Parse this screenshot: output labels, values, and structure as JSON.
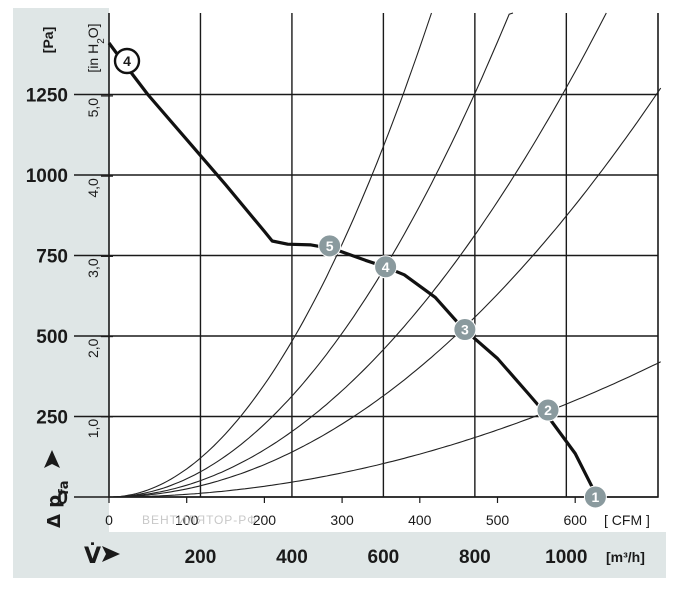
{
  "chart_data": {
    "type": "line",
    "title": "",
    "colors": {
      "panel_bg": "#dfe6e6",
      "plot_bg": "#ffffff",
      "grid": "#1a1a1a",
      "curve": "#111111",
      "point_fill": "#8a9a9e"
    },
    "y_left": {
      "label": "[Pa]",
      "range": [
        0,
        1400
      ],
      "ticks": [
        "0",
        "250",
        "500",
        "750",
        "1000",
        "1250"
      ]
    },
    "y_right": {
      "label": "[in H2O]",
      "label_parts": {
        "a": "[in H",
        "sub": "2",
        "b": "O]"
      },
      "ticks": [
        "1,0",
        "2,0",
        "3,0",
        "4,0",
        "5,0"
      ]
    },
    "x_cfm": {
      "label": "[ CFM ]",
      "range": [
        0,
        710
      ],
      "ticks": [
        "0",
        "100",
        "200",
        "300",
        "400",
        "500",
        "600"
      ]
    },
    "x_m3h": {
      "label": "[m³/h]",
      "ticks": [
        "200",
        "400",
        "600",
        "800",
        "1000"
      ]
    },
    "y_symbol": {
      "main": "Δ p",
      "sub": "fa"
    },
    "x_symbol": "V̇",
    "watermark": "ВЕНТИЛЯТОР-РФ",
    "performance_curve": {
      "label": "4",
      "points_cfm_pa": [
        [
          0,
          1410
        ],
        [
          20,
          1345
        ],
        [
          50,
          1250
        ],
        [
          100,
          1110
        ],
        [
          150,
          970
        ],
        [
          200,
          825
        ],
        [
          210,
          795
        ],
        [
          230,
          785
        ],
        [
          260,
          783
        ],
        [
          290,
          770
        ],
        [
          330,
          735
        ],
        [
          355,
          715
        ],
        [
          380,
          690
        ],
        [
          420,
          620
        ],
        [
          455,
          525
        ],
        [
          500,
          430
        ],
        [
          540,
          320
        ],
        [
          565,
          250
        ],
        [
          600,
          135
        ],
        [
          622,
          30
        ],
        [
          626,
          0
        ]
      ]
    },
    "operating_points": [
      {
        "label": "1",
        "cfm": 626,
        "pa": 0
      },
      {
        "label": "2",
        "cfm": 565,
        "pa": 270
      },
      {
        "label": "3",
        "cfm": 458,
        "pa": 520
      },
      {
        "label": "4",
        "cfm": 356,
        "pa": 715
      },
      {
        "label": "5",
        "cfm": 284,
        "pa": 780
      }
    ],
    "system_curves": [
      {
        "pa_at_710cfm": 420
      },
      {
        "pa_at_710cfm": 1270
      },
      {
        "pa_at_710cfm": 1850
      },
      {
        "pa_at_710cfm": 2850
      },
      {
        "pa_at_710cfm": 4400
      }
    ]
  }
}
